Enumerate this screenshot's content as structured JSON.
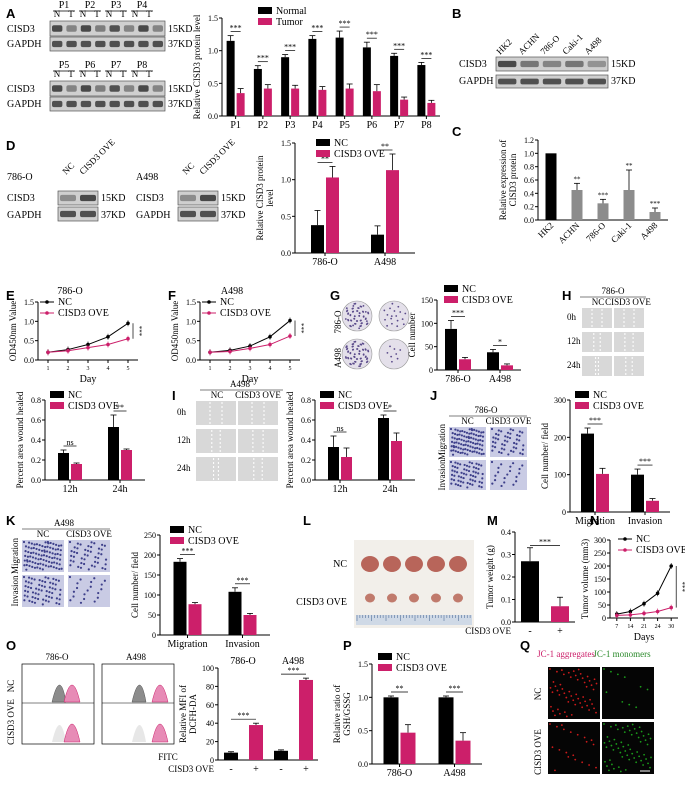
{
  "colors": {
    "normal": "#000000",
    "tumor": "#cc1f6a",
    "gray": "#8c8c8c",
    "panel_bg": "#d8d8d8",
    "blot": "#3a3a3a"
  },
  "panels": {
    "A": {
      "letter": "A",
      "blot_rows": [
        {
          "samples": [
            "P1",
            "P2",
            "P3",
            "P4"
          ]
        },
        {
          "samples": [
            "P5",
            "P6",
            "P7",
            "P8"
          ]
        }
      ],
      "lane_labels": [
        "N",
        "T"
      ],
      "protein_labels": [
        "CISD3",
        "GAPDH"
      ],
      "size_labels": [
        "15KD",
        "37KD"
      ]
    },
    "B": {
      "letter": "B",
      "lanes": [
        "HK2",
        "ACHN",
        "786-O",
        "Caki-1",
        "A498"
      ],
      "protein_labels": [
        "CISD3",
        "GAPDH"
      ],
      "size_labels": [
        "15KD",
        "37KD"
      ]
    },
    "C": {
      "letter": "C"
    },
    "D": {
      "letter": "D",
      "cell_lines": [
        "786-O",
        "A498"
      ],
      "lanes": [
        "NC",
        "CISD3 OVE"
      ],
      "protein_labels": [
        "CISD3",
        "GAPDH"
      ],
      "size_labels": [
        "15KD",
        "37KD"
      ]
    },
    "E": {
      "letter": "E",
      "title": "786-O"
    },
    "F": {
      "letter": "F",
      "title": "A498"
    },
    "G": {
      "letter": "G",
      "row_labels": [
        "786-O",
        "A498"
      ]
    },
    "H": {
      "letter": "H",
      "title": "786-O",
      "cols": [
        "NC",
        "CISD3 OVE"
      ],
      "rows": [
        "0h",
        "12h",
        "24h"
      ]
    },
    "I": {
      "letter": "I",
      "title": "A498",
      "cols": [
        "NC",
        "CISD3 OVE"
      ],
      "rows": [
        "0h",
        "12h",
        "24h"
      ]
    },
    "J": {
      "letter": "J",
      "title": "786-O",
      "cols": [
        "NC",
        "CISD3 OVE"
      ],
      "rows": [
        "Migration",
        "Invasion"
      ]
    },
    "K": {
      "letter": "K",
      "title": "A498",
      "cols": [
        "NC",
        "CISD3 OVE"
      ],
      "rows": [
        "Migration",
        "Invasion"
      ]
    },
    "L": {
      "letter": "L",
      "rows": [
        "NC",
        "CISD3 OVE"
      ]
    },
    "M": {
      "letter": "M"
    },
    "N": {
      "letter": "N"
    },
    "O": {
      "letter": "O",
      "titles": [
        "786-O",
        "A498"
      ],
      "rows": [
        "NC",
        "CISD3 OVE"
      ],
      "xlabel": "FITC"
    },
    "P": {
      "letter": "P"
    },
    "Q": {
      "letter": "Q",
      "cols": [
        "JC-1 aggregates",
        "JC-1 monomers"
      ],
      "rows": [
        "NC",
        "CISD3 OVE"
      ]
    }
  },
  "chart_data": [
    {
      "id": "A",
      "type": "bar",
      "categories": [
        "P1",
        "P2",
        "P3",
        "P4",
        "P5",
        "P6",
        "P7",
        "P8"
      ],
      "series": [
        {
          "name": "Normal",
          "values": [
            1.15,
            0.72,
            0.9,
            1.18,
            1.2,
            1.05,
            0.92,
            0.78
          ],
          "errors": [
            0.08,
            0.05,
            0.04,
            0.05,
            0.1,
            0.08,
            0.04,
            0.04
          ]
        },
        {
          "name": "Tumor",
          "values": [
            0.35,
            0.42,
            0.42,
            0.4,
            0.42,
            0.38,
            0.25,
            0.2
          ],
          "errors": [
            0.07,
            0.06,
            0.05,
            0.05,
            0.07,
            0.1,
            0.04,
            0.04
          ]
        }
      ],
      "ylabel": "Relative CISD3 protein level",
      "ylim": [
        0,
        1.5
      ],
      "yticks": [
        "0.0",
        "0.5",
        "1.0",
        "1.5"
      ],
      "sig": [
        "***",
        "***",
        "***",
        "***",
        "***",
        "***",
        "***",
        "***"
      ]
    },
    {
      "id": "C",
      "type": "bar",
      "categories": [
        "HK2",
        "ACHN",
        "786-O",
        "Caki-1",
        "A498"
      ],
      "values": [
        1.0,
        0.45,
        0.25,
        0.45,
        0.12
      ],
      "errors": [
        0,
        0.1,
        0.06,
        0.3,
        0.06
      ],
      "ylabel": "Relative expression of CISD3 protein",
      "ylim": [
        0,
        1.2
      ],
      "yticks": [
        "0.0",
        "0.2",
        "0.4",
        "0.6",
        "0.8",
        "1.0",
        "1.2"
      ],
      "sig": [
        "",
        "**",
        "***",
        "**",
        "***"
      ]
    },
    {
      "id": "D",
      "type": "bar",
      "categories": [
        "786-O",
        "A498"
      ],
      "series": [
        {
          "name": "NC",
          "values": [
            0.38,
            0.25
          ],
          "errors": [
            0.2,
            0.12
          ]
        },
        {
          "name": "CISD3 OVE",
          "values": [
            1.03,
            1.13
          ],
          "errors": [
            0.15,
            0.22
          ]
        }
      ],
      "ylabel": "Relative CISD3 protein level",
      "ylim": [
        0,
        1.5
      ],
      "yticks": [
        "0.0",
        "0.5",
        "1.0",
        "1.5"
      ],
      "sig": [
        "**",
        "**"
      ]
    },
    {
      "id": "E",
      "type": "line",
      "x": [
        1,
        2,
        3,
        4,
        5
      ],
      "series": [
        {
          "name": "NC",
          "values": [
            0.2,
            0.27,
            0.4,
            0.6,
            0.95
          ]
        },
        {
          "name": "CISD3 OVE",
          "values": [
            0.2,
            0.24,
            0.32,
            0.4,
            0.55
          ]
        }
      ],
      "xlabel": "Day",
      "ylabel": "OD450nm Value",
      "ylim": [
        0,
        1.5
      ],
      "yticks": [
        "0.0",
        "0.5",
        "1.0",
        "1.5"
      ],
      "sig": "***"
    },
    {
      "id": "F",
      "type": "line",
      "x": [
        1,
        2,
        3,
        4,
        5
      ],
      "series": [
        {
          "name": "NC",
          "values": [
            0.2,
            0.25,
            0.36,
            0.6,
            1.02
          ]
        },
        {
          "name": "CISD3 OVE",
          "values": [
            0.2,
            0.22,
            0.3,
            0.4,
            0.62
          ]
        }
      ],
      "xlabel": "Day",
      "ylabel": "OD450nm Value",
      "ylim": [
        0,
        1.5
      ],
      "yticks": [
        "0.0",
        "0.5",
        "1.0",
        "1.5"
      ],
      "sig": "***"
    },
    {
      "id": "G",
      "type": "bar",
      "categories": [
        "786-O",
        "A498"
      ],
      "series": [
        {
          "name": "NC",
          "values": [
            88,
            38
          ],
          "errors": [
            18,
            6
          ]
        },
        {
          "name": "CISD3 OVE",
          "values": [
            23,
            10
          ],
          "errors": [
            4,
            3
          ]
        }
      ],
      "ylabel": "Cell number",
      "ylim": [
        0,
        150
      ],
      "yticks": [
        "0",
        "50",
        "100",
        "150"
      ],
      "sig": [
        "***",
        "*"
      ]
    },
    {
      "id": "H2",
      "type": "bar",
      "categories": [
        "12h",
        "24h"
      ],
      "series": [
        {
          "name": "NC",
          "values": [
            0.27,
            0.53
          ],
          "errors": [
            0.03,
            0.12
          ]
        },
        {
          "name": "CISD3 OVE",
          "values": [
            0.16,
            0.3
          ],
          "errors": [
            0.01,
            0.01
          ]
        }
      ],
      "ylabel": "Percent area wound healed",
      "ylim": [
        0,
        0.8
      ],
      "yticks": [
        "0.0",
        "0.2",
        "0.4",
        "0.6",
        "0.8"
      ],
      "sig": [
        "ns",
        "**"
      ]
    },
    {
      "id": "I2",
      "type": "bar",
      "categories": [
        "12h",
        "24h"
      ],
      "series": [
        {
          "name": "NC",
          "values": [
            0.33,
            0.62
          ],
          "errors": [
            0.11,
            0.03
          ]
        },
        {
          "name": "CISD3 OVE",
          "values": [
            0.23,
            0.39
          ],
          "errors": [
            0.09,
            0.08
          ]
        }
      ],
      "ylabel": "Percent area wound healed",
      "ylim": [
        0,
        0.8
      ],
      "yticks": [
        "0.0",
        "0.2",
        "0.4",
        "0.6",
        "0.8"
      ],
      "sig": [
        "ns",
        "*"
      ]
    },
    {
      "id": "J2",
      "type": "bar",
      "categories": [
        "Migration",
        "Invasion"
      ],
      "series": [
        {
          "name": "NC",
          "values": [
            210,
            100
          ],
          "errors": [
            15,
            15
          ]
        },
        {
          "name": "CISD3 OVE",
          "values": [
            102,
            30
          ],
          "errors": [
            15,
            6
          ]
        }
      ],
      "ylabel": "Cell number/ field",
      "ylim": [
        0,
        300
      ],
      "yticks": [
        "0",
        "100",
        "200",
        "300"
      ],
      "sig": [
        "***",
        "***"
      ]
    },
    {
      "id": "K2",
      "type": "bar",
      "categories": [
        "Migration",
        "Invasion"
      ],
      "series": [
        {
          "name": "NC",
          "values": [
            183,
            108
          ],
          "errors": [
            8,
            10
          ]
        },
        {
          "name": "CISD3 OVE",
          "values": [
            77,
            50
          ],
          "errors": [
            4,
            4
          ]
        }
      ],
      "ylabel": "Cell number/ field",
      "ylim": [
        0,
        250
      ],
      "yticks": [
        "0",
        "50",
        "100",
        "150",
        "200",
        "250"
      ],
      "sig": [
        "***",
        "***"
      ]
    },
    {
      "id": "M",
      "type": "bar",
      "categories": [
        "-",
        "+"
      ],
      "values": [
        0.27,
        0.07
      ],
      "errors": [
        0.06,
        0.04
      ],
      "xlabel": "CISD3 OVE",
      "ylabel": "Tumor weight (g)",
      "ylim": [
        0,
        0.4
      ],
      "yticks": [
        "0.0",
        "0.1",
        "0.2",
        "0.3",
        "0.4"
      ],
      "sig": "***"
    },
    {
      "id": "N",
      "type": "line",
      "x": [
        "7",
        "14",
        "21",
        "24",
        "30"
      ],
      "series": [
        {
          "name": "NC",
          "values": [
            15,
            25,
            55,
            95,
            200
          ]
        },
        {
          "name": "CISD3 OVE",
          "values": [
            10,
            12,
            18,
            25,
            40
          ]
        }
      ],
      "xlabel": "Days",
      "ylabel": "Tumor volume (mm3)",
      "ylim": [
        0,
        300
      ],
      "yticks": [
        "0",
        "50",
        "100",
        "150",
        "200",
        "250",
        "300"
      ],
      "sig": "***"
    },
    {
      "id": "O2",
      "type": "bar",
      "groups": [
        "786-O",
        "A498"
      ],
      "categories": [
        "-",
        "+",
        "-",
        "+"
      ],
      "values": [
        8,
        38,
        10,
        87
      ],
      "errors": [
        1,
        2,
        1,
        2
      ],
      "xlabel": "CISD3 OVE",
      "ylabel": "Relative MFI of DCFH-DA",
      "ylim": [
        0,
        100
      ],
      "yticks": [
        "0",
        "20",
        "40",
        "60",
        "80",
        "100"
      ],
      "sig": [
        "***",
        "***"
      ]
    },
    {
      "id": "P",
      "type": "bar",
      "categories": [
        "786-O",
        "A498"
      ],
      "series": [
        {
          "name": "NC",
          "values": [
            1.0,
            1.0
          ],
          "errors": [
            0.02,
            0.02
          ]
        },
        {
          "name": "CISD3 OVE",
          "values": [
            0.47,
            0.35
          ],
          "errors": [
            0.12,
            0.12
          ]
        }
      ],
      "ylabel": "Relative ratio of GSH/GSSG",
      "ylim": [
        0,
        1.5
      ],
      "yticks": [
        "0.0",
        "0.5",
        "1.0",
        "1.5"
      ],
      "sig": [
        "**",
        "***"
      ]
    }
  ]
}
